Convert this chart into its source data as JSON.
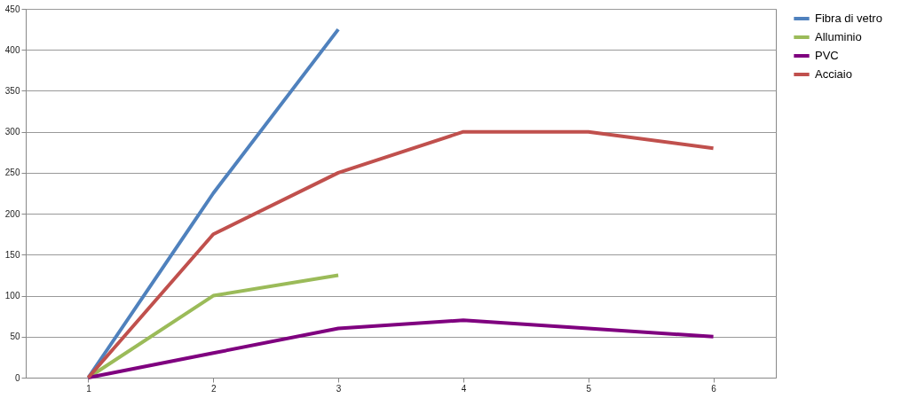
{
  "chart_data": {
    "type": "line",
    "categories": [
      "1",
      "2",
      "3",
      "4",
      "5",
      "6"
    ],
    "series": [
      {
        "name": "Fibra di vetro",
        "color": "#4f81bd",
        "values": [
          0,
          225,
          425,
          null,
          null,
          null
        ]
      },
      {
        "name": "Alluminio",
        "color": "#9bbb59",
        "values": [
          0,
          100,
          125,
          null,
          null,
          null
        ]
      },
      {
        "name": "PVC",
        "color": "#7f007f",
        "values": [
          0,
          30,
          60,
          70,
          60,
          50
        ]
      },
      {
        "name": "Acciaio",
        "color": "#c0504d",
        "values": [
          0,
          175,
          250,
          300,
          300,
          280
        ]
      }
    ],
    "ylim": [
      0,
      450
    ],
    "yticks": [
      0,
      50,
      100,
      150,
      200,
      250,
      300,
      350,
      400,
      450
    ],
    "grid": "y",
    "legend": "right",
    "marker": "none",
    "line_style": "solid"
  }
}
